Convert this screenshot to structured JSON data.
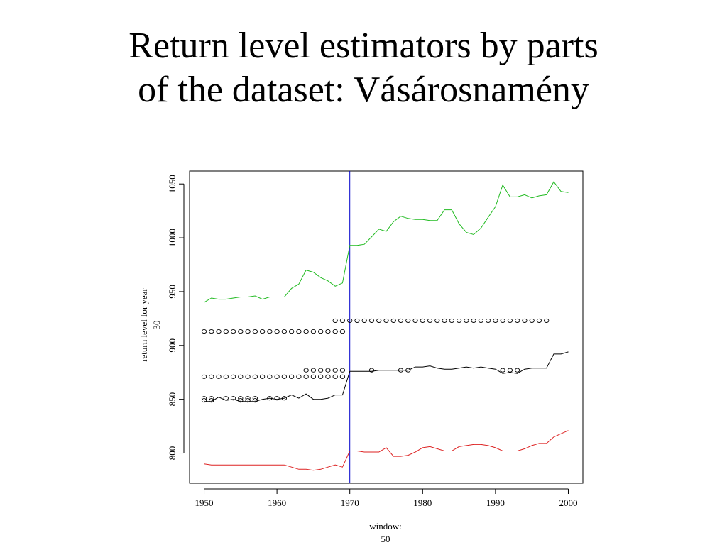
{
  "title": {
    "line1": "Return level estimators by parts",
    "line2": "of the dataset: Vásárosnamény"
  },
  "chart_data": {
    "type": "line",
    "xlabel_lines": [
      "window:",
      "50"
    ],
    "ylabel_lines": [
      "return level for year",
      "30"
    ],
    "xlim": [
      1948,
      2002
    ],
    "ylim": [
      772,
      1062
    ],
    "x_ticks": [
      1950,
      1960,
      1970,
      1980,
      1990,
      2000
    ],
    "y_ticks": [
      800,
      850,
      900,
      950,
      1000,
      1050
    ],
    "vline": {
      "x": 1970,
      "color": "#0000cc"
    },
    "series": [
      {
        "color": "#22bb22",
        "x": [
          1950,
          1951,
          1952,
          1953,
          1954,
          1955,
          1956,
          1957,
          1958,
          1959,
          1960,
          1961,
          1962,
          1963,
          1964,
          1965,
          1966,
          1967,
          1968,
          1969,
          1970,
          1971,
          1972,
          1973,
          1974,
          1975,
          1976,
          1977,
          1978,
          1979,
          1980,
          1981,
          1982,
          1983,
          1984,
          1985,
          1986,
          1987,
          1988,
          1989,
          1990,
          1991,
          1992,
          1993,
          1994,
          1995,
          1996,
          1997,
          1998,
          1999,
          2000
        ],
        "y": [
          940,
          944,
          943,
          943,
          944,
          945,
          945,
          946,
          943,
          945,
          945,
          945,
          953,
          957,
          970,
          968,
          963,
          960,
          955,
          958,
          993,
          993,
          994,
          1001,
          1008,
          1006,
          1015,
          1020,
          1018,
          1017,
          1017,
          1016,
          1016,
          1026,
          1026,
          1013,
          1005,
          1003,
          1009,
          1019,
          1029,
          1049,
          1038,
          1038,
          1040,
          1037,
          1039,
          1040,
          1052,
          1043,
          1042
        ]
      },
      {
        "color": "#000000",
        "x": [
          1950,
          1951,
          1952,
          1953,
          1954,
          1955,
          1956,
          1957,
          1958,
          1959,
          1960,
          1961,
          1962,
          1963,
          1964,
          1965,
          1966,
          1967,
          1968,
          1969,
          1970,
          1971,
          1972,
          1973,
          1974,
          1975,
          1976,
          1977,
          1978,
          1979,
          1980,
          1981,
          1982,
          1983,
          1984,
          1985,
          1986,
          1987,
          1988,
          1989,
          1990,
          1991,
          1992,
          1993,
          1994,
          1995,
          1996,
          1997,
          1998,
          1999,
          2000
        ],
        "y": [
          848,
          848,
          852,
          849,
          850,
          848,
          848,
          848,
          850,
          851,
          850,
          851,
          854,
          851,
          855,
          850,
          850,
          851,
          854,
          854,
          876,
          876,
          876,
          876,
          877,
          877,
          877,
          877,
          877,
          880,
          880,
          881,
          879,
          878,
          878,
          879,
          880,
          879,
          880,
          879,
          878,
          874,
          875,
          874,
          878,
          879,
          879,
          879,
          892,
          892,
          894
        ]
      },
      {
        "color": "#dd2222",
        "x": [
          1950,
          1951,
          1952,
          1953,
          1954,
          1955,
          1956,
          1957,
          1958,
          1959,
          1960,
          1961,
          1962,
          1963,
          1964,
          1965,
          1966,
          1967,
          1968,
          1969,
          1970,
          1971,
          1972,
          1973,
          1974,
          1975,
          1976,
          1977,
          1978,
          1979,
          1980,
          1981,
          1982,
          1983,
          1984,
          1985,
          1986,
          1987,
          1988,
          1989,
          1990,
          1991,
          1992,
          1993,
          1994,
          1995,
          1996,
          1997,
          1998,
          1999,
          2000
        ],
        "y": [
          790,
          789,
          789,
          789,
          789,
          789,
          789,
          789,
          789,
          789,
          789,
          789,
          787,
          785,
          785,
          784,
          785,
          787,
          789,
          787,
          802,
          802,
          801,
          801,
          801,
          805,
          797,
          797,
          798,
          801,
          805,
          806,
          804,
          802,
          802,
          806,
          807,
          808,
          808,
          807,
          805,
          802,
          802,
          802,
          804,
          807,
          809,
          809,
          815,
          818,
          821
        ]
      }
    ],
    "points": [
      {
        "y": 923,
        "x": [
          1968,
          1969,
          1970,
          1971,
          1972,
          1973,
          1974,
          1975,
          1976,
          1977,
          1978,
          1979,
          1980,
          1981,
          1982,
          1983,
          1984,
          1985,
          1986,
          1987,
          1988,
          1989,
          1990,
          1991,
          1992,
          1993,
          1994,
          1995,
          1996,
          1997
        ]
      },
      {
        "y": 913,
        "x": [
          1950,
          1951,
          1952,
          1953,
          1954,
          1955,
          1956,
          1957,
          1958,
          1959,
          1960,
          1961,
          1962,
          1963,
          1964,
          1965,
          1966,
          1967,
          1968,
          1969
        ]
      },
      {
        "y": 877,
        "x": [
          1964,
          1965,
          1966,
          1967,
          1968,
          1969,
          1973,
          1977,
          1978,
          1991,
          1992,
          1993
        ]
      },
      {
        "y": 871,
        "x": [
          1950,
          1951,
          1952,
          1953,
          1954,
          1955,
          1956,
          1957,
          1958,
          1959,
          1960,
          1961,
          1962,
          1963,
          1964,
          1965,
          1966,
          1967,
          1968,
          1969
        ]
      },
      {
        "y": 851,
        "x": [
          1950,
          1951,
          1953,
          1954,
          1955,
          1956,
          1957,
          1959,
          1960,
          1961
        ]
      },
      {
        "y": 849,
        "x": [
          1950,
          1951,
          1955,
          1956,
          1957
        ]
      }
    ]
  }
}
